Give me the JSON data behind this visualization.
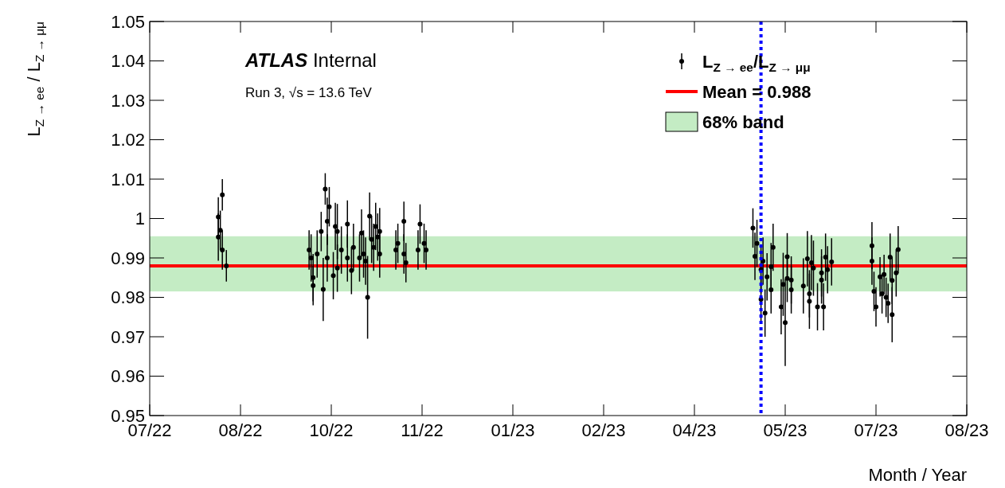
{
  "chart_data": {
    "type": "scatter",
    "annotations": [
      "ATLAS Internal",
      "Run 3, √s = 13.6 TeV"
    ],
    "xlabel": "Month / Year",
    "ylabel": "L$_{Z → ee}$ / L$_{Z → μμ}$",
    "xlim": [
      "2022-07-12",
      "2023-08-21"
    ],
    "xticks": [
      {
        "value": "2022-07-12",
        "label": "07/22"
      },
      {
        "value": "2022-08-26",
        "label": "08/22"
      },
      {
        "value": "2022-10-10",
        "label": "10/22"
      },
      {
        "value": "2022-11-24",
        "label": "11/22"
      },
      {
        "value": "2023-01-08",
        "label": "01/23"
      },
      {
        "value": "2023-02-22",
        "label": "02/23"
      },
      {
        "value": "2023-04-08",
        "label": "04/23"
      },
      {
        "value": "2023-05-23",
        "label": "05/23"
      },
      {
        "value": "2023-07-07",
        "label": "07/23"
      },
      {
        "value": "2023-08-21",
        "label": "08/23"
      }
    ],
    "ylim": [
      0.95,
      1.05
    ],
    "yticks": [
      0.95,
      0.96,
      0.97,
      0.98,
      0.99,
      1,
      1.01,
      1.02,
      1.03,
      1.04,
      1.05
    ],
    "legend": "top right",
    "marker": "circle",
    "series": [
      {
        "name": "L$_{Z → ee}$/L$_{Z → μμ}$",
        "color": "#000000",
        "x": [
          "2022-08-15",
          "2022-08-15",
          "2022-08-16",
          "2022-08-17",
          "2022-08-17",
          "2022-08-19",
          "2022-09-29",
          "2022-09-30",
          "2022-10-01",
          "2022-10-01",
          "2022-10-03",
          "2022-10-05",
          "2022-10-06",
          "2022-10-07",
          "2022-10-08",
          "2022-10-08",
          "2022-10-09",
          "2022-10-11",
          "2022-10-12",
          "2022-10-13",
          "2022-10-13",
          "2022-10-15",
          "2022-10-18",
          "2022-10-18",
          "2022-10-20",
          "2022-10-21",
          "2022-10-24",
          "2022-10-25",
          "2022-10-26",
          "2022-10-27",
          "2022-10-28",
          "2022-10-29",
          "2022-10-30",
          "2022-10-31",
          "2022-11-01",
          "2022-11-02",
          "2022-11-03",
          "2022-11-03",
          "2022-11-11",
          "2022-11-12",
          "2022-11-15",
          "2022-11-15",
          "2022-11-16",
          "2022-11-22",
          "2022-11-23",
          "2022-11-25",
          "2022-11-26",
          "2023-05-07",
          "2023-05-08",
          "2023-05-09",
          "2023-05-11",
          "2023-05-11",
          "2023-05-12",
          "2023-05-13",
          "2023-05-14",
          "2023-05-16",
          "2023-05-16",
          "2023-05-17",
          "2023-05-21",
          "2023-05-22",
          "2023-05-23",
          "2023-05-24",
          "2023-05-24",
          "2023-05-26",
          "2023-05-26",
          "2023-06-01",
          "2023-06-03",
          "2023-06-04",
          "2023-06-04",
          "2023-06-05",
          "2023-06-06",
          "2023-06-08",
          "2023-06-10",
          "2023-06-10",
          "2023-06-11",
          "2023-06-12",
          "2023-06-13",
          "2023-06-15",
          "2023-07-05",
          "2023-07-05",
          "2023-07-06",
          "2023-07-07",
          "2023-07-09",
          "2023-07-10",
          "2023-07-11",
          "2023-07-12",
          "2023-07-13",
          "2023-07-14",
          "2023-07-15",
          "2023-07-15",
          "2023-07-17",
          "2023-07-18"
        ],
        "values": [
          0.9953,
          1.0004,
          0.997,
          1.006,
          0.992,
          0.988,
          0.992,
          0.99,
          0.985,
          0.983,
          0.991,
          0.9967,
          0.982,
          1.0075,
          0.9993,
          0.99,
          1.003,
          0.9855,
          0.998,
          0.9967,
          0.9874,
          0.992,
          0.9986,
          0.99,
          0.9868,
          0.9927,
          0.99,
          0.9963,
          0.991,
          0.9892,
          0.98,
          1.0006,
          0.9947,
          0.9927,
          0.998,
          0.9953,
          0.9967,
          0.991,
          0.992,
          0.9937,
          0.9993,
          0.991,
          0.9888,
          0.992,
          0.9986,
          0.9937,
          0.992,
          0.9976,
          0.9904,
          0.9937,
          0.987,
          0.9795,
          0.9892,
          0.976,
          0.9852,
          0.9819,
          0.9878,
          0.9927,
          0.9776,
          0.9833,
          0.9736,
          0.9903,
          0.9848,
          0.9844,
          0.9819,
          0.9829,
          0.9898,
          0.9809,
          0.979,
          0.9888,
          0.9874,
          0.9776,
          0.9862,
          0.9844,
          0.9776,
          0.9902,
          0.987,
          0.989,
          0.9931,
          0.9892,
          0.9815,
          0.9776,
          0.9852,
          0.9809,
          0.9858,
          0.98,
          0.9785,
          0.9902,
          0.9843,
          0.9756,
          0.9862,
          0.9921
        ],
        "errors": [
          0.006,
          0.005,
          0.005,
          0.004,
          0.005,
          0.004,
          0.005,
          0.006,
          0.006,
          0.005,
          0.006,
          0.005,
          0.008,
          0.004,
          0.006,
          0.006,
          0.005,
          0.006,
          0.006,
          0.007,
          0.006,
          0.006,
          0.006,
          0.006,
          0.006,
          0.006,
          0.006,
          0.006,
          0.006,
          0.006,
          0.0105,
          0.006,
          0.006,
          0.006,
          0.006,
          0.006,
          0.006,
          0.006,
          0.005,
          0.005,
          0.005,
          0.005,
          0.005,
          0.005,
          0.005,
          0.005,
          0.005,
          0.005,
          0.006,
          0.006,
          0.006,
          0.006,
          0.006,
          0.006,
          0.006,
          0.006,
          0.006,
          0.006,
          0.007,
          0.008,
          0.011,
          0.006,
          0.006,
          0.006,
          0.006,
          0.007,
          0.007,
          0.006,
          0.007,
          0.007,
          0.007,
          0.006,
          0.006,
          0.006,
          0.006,
          0.006,
          0.006,
          0.006,
          0.006,
          0.006,
          0.005,
          0.005,
          0.005,
          0.005,
          0.005,
          0.005,
          0.005,
          0.006,
          0.006,
          0.007,
          0.006,
          0.006
        ]
      }
    ],
    "ref_lines": [
      {
        "axis": "y",
        "value": 0.988,
        "label": "Mean = 0.988",
        "color": "#ff0000",
        "line_style": "solid"
      },
      {
        "axis": "x",
        "value": "2023-05-11",
        "label": null,
        "color": "#0000ff",
        "line_style": "dotted"
      }
    ],
    "bands": [
      {
        "axis": "y",
        "from": 0.9815,
        "to": 0.9955,
        "label": "68% band",
        "color": "#c4ecc4"
      }
    ]
  }
}
